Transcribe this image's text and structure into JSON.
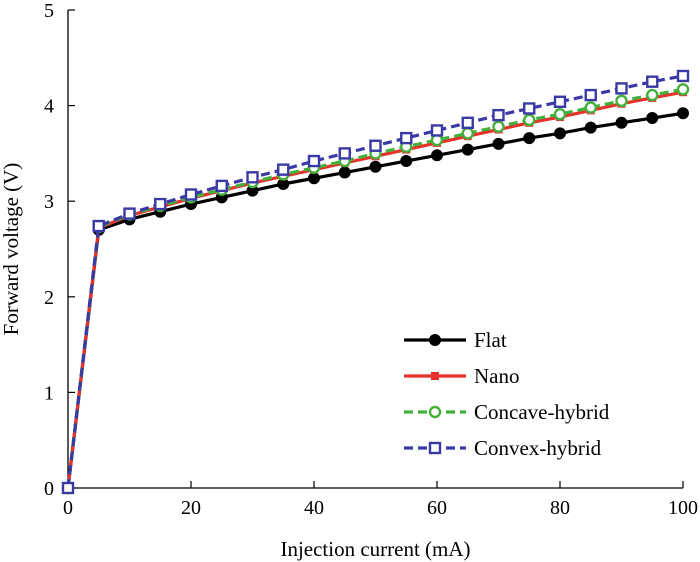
{
  "chart_data": {
    "type": "line",
    "xlabel": "Injection current (mA)",
    "ylabel": "Forward voltage (V)",
    "xlim": [
      0,
      100
    ],
    "ylim": [
      0,
      5
    ],
    "xticks": [
      0,
      20,
      40,
      60,
      80,
      100
    ],
    "yticks": [
      0,
      1,
      2,
      3,
      4,
      5
    ],
    "xtick_labels": [
      "0",
      "20",
      "40",
      "60",
      "80",
      "100"
    ],
    "ytick_labels": [
      "0",
      "1",
      "2",
      "3",
      "4",
      "5"
    ],
    "grid": false,
    "legend_position": "lower-right",
    "x": [
      0,
      5,
      10,
      15,
      20,
      25,
      30,
      35,
      40,
      45,
      50,
      55,
      60,
      65,
      70,
      75,
      80,
      85,
      90,
      95,
      100
    ],
    "series": [
      {
        "name": "Flat",
        "color": "#000000",
        "marker": "filled-circle",
        "dash": "solid",
        "values": [
          0,
          2.7,
          2.81,
          2.89,
          2.97,
          3.04,
          3.11,
          3.18,
          3.24,
          3.3,
          3.36,
          3.42,
          3.48,
          3.54,
          3.6,
          3.66,
          3.71,
          3.77,
          3.82,
          3.87,
          3.92
        ]
      },
      {
        "name": "Nano",
        "color": "#e8312b",
        "marker": "filled-square",
        "dash": "solid",
        "values": [
          0,
          2.72,
          2.85,
          2.94,
          3.03,
          3.11,
          3.19,
          3.26,
          3.33,
          3.4,
          3.47,
          3.54,
          3.61,
          3.68,
          3.75,
          3.82,
          3.88,
          3.95,
          4.02,
          4.08,
          4.14
        ]
      },
      {
        "name": "Concave-hybrid",
        "color": "#44b03c",
        "marker": "open-circle",
        "dash": "dashed",
        "values": [
          0,
          2.73,
          2.86,
          2.95,
          3.04,
          3.12,
          3.2,
          3.28,
          3.35,
          3.42,
          3.5,
          3.57,
          3.64,
          3.71,
          3.78,
          3.85,
          3.91,
          3.98,
          4.05,
          4.11,
          4.17
        ]
      },
      {
        "name": "Convex-hybrid",
        "color": "#3a3aa6",
        "marker": "open-square",
        "dash": "dashed",
        "values": [
          0,
          2.74,
          2.87,
          2.97,
          3.07,
          3.16,
          3.25,
          3.33,
          3.42,
          3.5,
          3.58,
          3.66,
          3.74,
          3.82,
          3.9,
          3.97,
          4.04,
          4.11,
          4.18,
          4.25,
          4.31
        ]
      }
    ]
  }
}
